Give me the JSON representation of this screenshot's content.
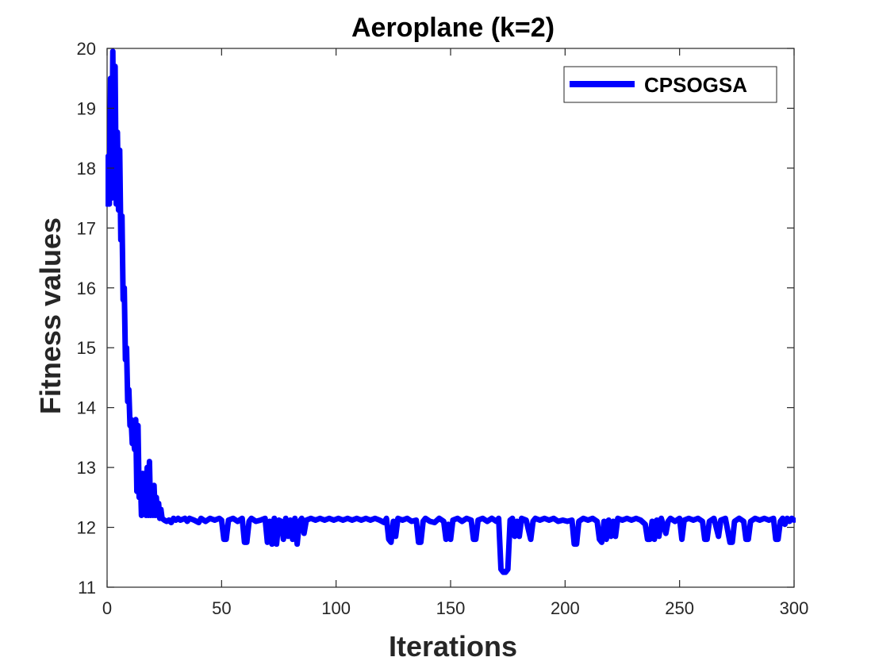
{
  "chart_data": {
    "type": "line",
    "title": "Aeroplane (k=2)",
    "xlabel": "Iterations",
    "ylabel": "Fitness values",
    "xlim": [
      0,
      300
    ],
    "ylim": [
      11,
      20
    ],
    "xticks": [
      0,
      50,
      100,
      150,
      200,
      250,
      300
    ],
    "yticks": [
      11,
      12,
      13,
      14,
      15,
      16,
      17,
      18,
      19,
      20
    ],
    "grid": false,
    "legend_position": "top-right",
    "series": [
      {
        "name": "CPSOGSA",
        "color": "#0000ff",
        "points": [
          [
            0,
            17.4
          ],
          [
            0.5,
            18.2
          ],
          [
            1,
            17.4
          ],
          [
            1.5,
            19.5
          ],
          [
            2,
            17.5
          ],
          [
            2.5,
            19.95
          ],
          [
            3,
            17.6
          ],
          [
            3.5,
            19.7
          ],
          [
            4,
            17.4
          ],
          [
            4.5,
            18.6
          ],
          [
            5,
            17.3
          ],
          [
            5.5,
            18.3
          ],
          [
            6,
            16.8
          ],
          [
            6.5,
            17.2
          ],
          [
            7,
            15.8
          ],
          [
            7.5,
            16.0
          ],
          [
            8,
            14.8
          ],
          [
            8.5,
            15.0
          ],
          [
            9,
            14.1
          ],
          [
            9.5,
            14.3
          ],
          [
            10,
            13.7
          ],
          [
            10.5,
            13.8
          ],
          [
            11,
            13.4
          ],
          [
            11.5,
            13.5
          ],
          [
            12,
            13.3
          ],
          [
            12.5,
            13.8
          ],
          [
            13,
            12.6
          ],
          [
            13.5,
            13.7
          ],
          [
            14,
            12.5
          ],
          [
            14.5,
            12.9
          ],
          [
            15,
            12.2
          ],
          [
            15.5,
            12.9
          ],
          [
            16,
            12.3
          ],
          [
            16.5,
            12.9
          ],
          [
            17,
            12.2
          ],
          [
            17.5,
            13.0
          ],
          [
            18,
            12.2
          ],
          [
            18.5,
            13.1
          ],
          [
            19,
            12.2
          ],
          [
            19.5,
            12.6
          ],
          [
            20,
            12.2
          ],
          [
            20.5,
            12.7
          ],
          [
            21,
            12.2
          ],
          [
            21.5,
            12.5
          ],
          [
            22,
            12.2
          ],
          [
            22.5,
            12.4
          ],
          [
            23,
            12.15
          ],
          [
            23.5,
            12.3
          ],
          [
            24,
            12.15
          ],
          [
            25,
            12.12
          ],
          [
            26,
            12.1
          ],
          [
            27,
            12.12
          ],
          [
            28,
            12.08
          ],
          [
            29,
            12.15
          ],
          [
            30,
            12.12
          ],
          [
            31,
            12.15
          ],
          [
            32,
            12.12
          ],
          [
            34,
            12.15
          ],
          [
            35,
            12.1
          ],
          [
            36,
            12.15
          ],
          [
            38,
            12.12
          ],
          [
            40,
            12.08
          ],
          [
            41,
            12.15
          ],
          [
            43,
            12.1
          ],
          [
            45,
            12.15
          ],
          [
            47,
            12.12
          ],
          [
            49,
            12.15
          ],
          [
            50,
            12.12
          ],
          [
            51,
            11.8
          ],
          [
            52,
            11.8
          ],
          [
            53,
            12.12
          ],
          [
            55,
            12.15
          ],
          [
            57,
            12.1
          ],
          [
            59,
            12.15
          ],
          [
            60,
            11.75
          ],
          [
            61,
            11.75
          ],
          [
            62,
            12.1
          ],
          [
            63,
            12.15
          ],
          [
            65,
            12.1
          ],
          [
            67,
            12.12
          ],
          [
            69,
            12.15
          ],
          [
            70,
            11.75
          ],
          [
            71,
            12.1
          ],
          [
            72,
            11.72
          ],
          [
            73,
            12.15
          ],
          [
            74,
            11.72
          ],
          [
            75,
            12.12
          ],
          [
            76,
            12.1
          ],
          [
            77,
            11.8
          ],
          [
            78,
            12.15
          ],
          [
            79,
            11.85
          ],
          [
            80,
            12.12
          ],
          [
            81,
            11.8
          ],
          [
            82,
            12.15
          ],
          [
            83,
            11.72
          ],
          [
            84,
            12.1
          ],
          [
            85,
            12.15
          ],
          [
            86,
            11.9
          ],
          [
            87,
            12.12
          ],
          [
            89,
            12.15
          ],
          [
            91,
            12.12
          ],
          [
            93,
            12.15
          ],
          [
            95,
            12.12
          ],
          [
            97,
            12.15
          ],
          [
            99,
            12.12
          ],
          [
            101,
            12.15
          ],
          [
            103,
            12.12
          ],
          [
            105,
            12.15
          ],
          [
            107,
            12.12
          ],
          [
            109,
            12.15
          ],
          [
            111,
            12.12
          ],
          [
            113,
            12.15
          ],
          [
            115,
            12.12
          ],
          [
            117,
            12.15
          ],
          [
            119,
            12.12
          ],
          [
            121,
            12.08
          ],
          [
            122,
            12.15
          ],
          [
            123,
            11.8
          ],
          [
            124,
            11.75
          ],
          [
            125,
            12.1
          ],
          [
            126,
            11.85
          ],
          [
            127,
            12.15
          ],
          [
            129,
            12.12
          ],
          [
            131,
            12.15
          ],
          [
            133,
            12.1
          ],
          [
            135,
            12.12
          ],
          [
            136,
            11.75
          ],
          [
            137,
            11.75
          ],
          [
            138,
            12.1
          ],
          [
            139,
            12.15
          ],
          [
            141,
            12.1
          ],
          [
            143,
            12.08
          ],
          [
            145,
            12.15
          ],
          [
            147,
            12.1
          ],
          [
            148,
            11.8
          ],
          [
            149,
            12.05
          ],
          [
            150,
            11.8
          ],
          [
            151,
            12.12
          ],
          [
            153,
            12.15
          ],
          [
            155,
            12.1
          ],
          [
            157,
            12.15
          ],
          [
            159,
            12.12
          ],
          [
            160,
            11.8
          ],
          [
            161,
            11.8
          ],
          [
            162,
            12.12
          ],
          [
            164,
            12.15
          ],
          [
            166,
            12.1
          ],
          [
            168,
            12.15
          ],
          [
            170,
            12.1
          ],
          [
            171,
            12.15
          ],
          [
            172,
            11.3
          ],
          [
            173,
            11.25
          ],
          [
            174,
            11.25
          ],
          [
            175,
            11.3
          ],
          [
            176,
            12.12
          ],
          [
            177,
            12.15
          ],
          [
            178,
            11.85
          ],
          [
            179,
            12.1
          ],
          [
            180,
            11.85
          ],
          [
            181,
            12.15
          ],
          [
            183,
            12.12
          ],
          [
            185,
            11.8
          ],
          [
            186,
            12.1
          ],
          [
            187,
            12.15
          ],
          [
            189,
            12.12
          ],
          [
            191,
            12.15
          ],
          [
            193,
            12.12
          ],
          [
            195,
            12.15
          ],
          [
            197,
            12.1
          ],
          [
            199,
            12.12
          ],
          [
            201,
            12.1
          ],
          [
            203,
            12.12
          ],
          [
            204,
            11.72
          ],
          [
            205,
            11.72
          ],
          [
            206,
            12.1
          ],
          [
            208,
            12.15
          ],
          [
            210,
            12.12
          ],
          [
            212,
            12.15
          ],
          [
            214,
            12.1
          ],
          [
            215,
            11.8
          ],
          [
            216,
            11.75
          ],
          [
            217,
            12.1
          ],
          [
            218,
            11.8
          ],
          [
            219,
            12.12
          ],
          [
            220,
            11.85
          ],
          [
            221,
            12.1
          ],
          [
            222,
            11.85
          ],
          [
            223,
            12.15
          ],
          [
            225,
            12.12
          ],
          [
            227,
            12.15
          ],
          [
            229,
            12.12
          ],
          [
            231,
            12.15
          ],
          [
            233,
            12.12
          ],
          [
            235,
            12.05
          ],
          [
            236,
            11.8
          ],
          [
            237,
            11.8
          ],
          [
            238,
            12.1
          ],
          [
            239,
            11.8
          ],
          [
            240,
            12.12
          ],
          [
            241,
            11.85
          ],
          [
            242,
            12.15
          ],
          [
            244,
            11.9
          ],
          [
            245,
            12.1
          ],
          [
            246,
            12.15
          ],
          [
            248,
            12.1
          ],
          [
            250,
            12.15
          ],
          [
            251,
            11.8
          ],
          [
            252,
            12.12
          ],
          [
            254,
            12.15
          ],
          [
            256,
            12.12
          ],
          [
            258,
            12.15
          ],
          [
            260,
            12.1
          ],
          [
            261,
            11.8
          ],
          [
            262,
            11.8
          ],
          [
            263,
            12.1
          ],
          [
            265,
            12.15
          ],
          [
            267,
            11.85
          ],
          [
            268,
            12.12
          ],
          [
            270,
            12.15
          ],
          [
            272,
            11.75
          ],
          [
            273,
            11.75
          ],
          [
            274,
            12.1
          ],
          [
            276,
            12.15
          ],
          [
            278,
            12.1
          ],
          [
            279,
            11.8
          ],
          [
            280,
            11.8
          ],
          [
            281,
            12.1
          ],
          [
            283,
            12.15
          ],
          [
            285,
            12.12
          ],
          [
            287,
            12.15
          ],
          [
            289,
            12.12
          ],
          [
            291,
            12.15
          ],
          [
            292,
            11.8
          ],
          [
            293,
            11.8
          ],
          [
            294,
            12.1
          ],
          [
            295,
            12.15
          ],
          [
            296,
            12.05
          ],
          [
            297,
            12.15
          ],
          [
            298,
            12.1
          ],
          [
            299,
            12.15
          ],
          [
            300,
            12.12
          ]
        ]
      }
    ]
  }
}
